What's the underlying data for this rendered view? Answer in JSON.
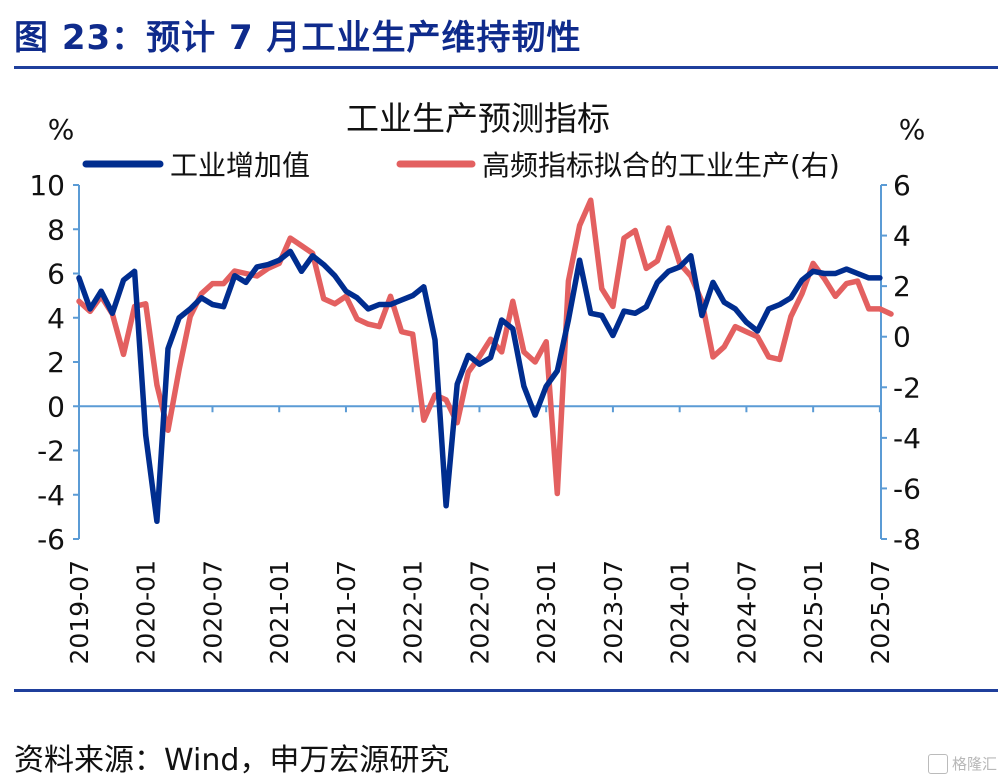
{
  "figure_title": "图 23：预计 7 月工业生产维持韧性",
  "source_note": "资料来源：Wind，申万宏源研究",
  "watermark_text": "格隆汇",
  "colors": {
    "primary": "#002d8f",
    "secondary": "#e36060",
    "axis": "#5b9bd5",
    "title": "#0f2b8c"
  },
  "chart_data": {
    "type": "line",
    "title": "工业生产预测指标",
    "y_unit_left": "%",
    "y_unit_right": "%",
    "ylim_left": [
      -6,
      10
    ],
    "ylim_right": [
      -8,
      6
    ],
    "yticks_left": [
      -6,
      -4,
      -2,
      0,
      2,
      4,
      6,
      8,
      10
    ],
    "yticks_right": [
      -8,
      -6,
      -4,
      -2,
      0,
      2,
      4,
      6
    ],
    "x_tick_labels": [
      "2019-07",
      "2020-01",
      "2020-07",
      "2021-01",
      "2021-07",
      "2022-01",
      "2022-07",
      "2023-01",
      "2023-07",
      "2024-01",
      "2024-07",
      "2025-01",
      "2025-07"
    ],
    "x_start": "2019-07",
    "x_end": "2025-07",
    "legend_position": "top",
    "series": [
      {
        "name": "工业增加值",
        "axis": "left",
        "color": "#002d8f",
        "points": [
          [
            "2019-07",
            5.8
          ],
          [
            "2019-08",
            4.4
          ],
          [
            "2019-09",
            5.2
          ],
          [
            "2019-10",
            4.2
          ],
          [
            "2019-11",
            5.7
          ],
          [
            "2019-12",
            6.1
          ],
          [
            "2020-01",
            -1.3
          ],
          [
            "2020-02",
            -5.2
          ],
          [
            "2020-03",
            2.6
          ],
          [
            "2020-04",
            4.0
          ],
          [
            "2020-05",
            4.4
          ],
          [
            "2020-06",
            4.9
          ],
          [
            "2020-07",
            4.6
          ],
          [
            "2020-08",
            4.5
          ],
          [
            "2020-09",
            5.9
          ],
          [
            "2020-10",
            5.6
          ],
          [
            "2020-11",
            6.3
          ],
          [
            "2020-12",
            6.4
          ],
          [
            "2021-01",
            6.6
          ],
          [
            "2021-02",
            7.0
          ],
          [
            "2021-03",
            6.1
          ],
          [
            "2021-04",
            6.8
          ],
          [
            "2021-05",
            6.4
          ],
          [
            "2021-06",
            5.9
          ],
          [
            "2021-07",
            5.2
          ],
          [
            "2021-08",
            4.9
          ],
          [
            "2021-09",
            4.4
          ],
          [
            "2021-10",
            4.6
          ],
          [
            "2021-11",
            4.6
          ],
          [
            "2021-12",
            4.8
          ],
          [
            "2022-01",
            5.0
          ],
          [
            "2022-02",
            5.4
          ],
          [
            "2022-03",
            3.0
          ],
          [
            "2022-04",
            -4.5
          ],
          [
            "2022-05",
            1.0
          ],
          [
            "2022-06",
            2.3
          ],
          [
            "2022-07",
            1.9
          ],
          [
            "2022-08",
            2.2
          ],
          [
            "2022-09",
            3.9
          ],
          [
            "2022-10",
            3.5
          ],
          [
            "2022-11",
            0.9
          ],
          [
            "2022-12",
            -0.4
          ],
          [
            "2023-01",
            0.9
          ],
          [
            "2023-02",
            1.6
          ],
          [
            "2023-03",
            3.9
          ],
          [
            "2023-04",
            6.6
          ],
          [
            "2023-05",
            4.2
          ],
          [
            "2023-06",
            4.1
          ],
          [
            "2023-07",
            3.2
          ],
          [
            "2023-08",
            4.3
          ],
          [
            "2023-09",
            4.2
          ],
          [
            "2023-10",
            4.5
          ],
          [
            "2023-11",
            5.6
          ],
          [
            "2023-12",
            6.1
          ],
          [
            "2024-01",
            6.3
          ],
          [
            "2024-02",
            6.8
          ],
          [
            "2024-03",
            4.1
          ],
          [
            "2024-04",
            5.6
          ],
          [
            "2024-05",
            4.7
          ],
          [
            "2024-06",
            4.4
          ],
          [
            "2024-07",
            3.8
          ],
          [
            "2024-08",
            3.4
          ],
          [
            "2024-09",
            4.4
          ],
          [
            "2024-10",
            4.6
          ],
          [
            "2024-11",
            4.9
          ],
          [
            "2024-12",
            5.7
          ],
          [
            "2025-01",
            6.1
          ],
          [
            "2025-02",
            6.0
          ],
          [
            "2025-03",
            6.0
          ],
          [
            "2025-04",
            6.2
          ],
          [
            "2025-05",
            6.0
          ],
          [
            "2025-06",
            5.8
          ],
          [
            "2025-07",
            5.8
          ]
        ]
      },
      {
        "name": "高频指标拟合的工业生产(右)",
        "axis": "right",
        "color": "#e36060",
        "points": [
          [
            "2019-07",
            1.4
          ],
          [
            "2019-08",
            1.0
          ],
          [
            "2019-09",
            1.6
          ],
          [
            "2019-10",
            0.9
          ],
          [
            "2019-11",
            -0.7
          ],
          [
            "2019-12",
            1.2
          ],
          [
            "2020-01",
            1.3
          ],
          [
            "2020-02",
            -1.9
          ],
          [
            "2020-03",
            -3.7
          ],
          [
            "2020-04",
            -1.3
          ],
          [
            "2020-05",
            0.8
          ],
          [
            "2020-06",
            1.7
          ],
          [
            "2020-07",
            2.1
          ],
          [
            "2020-08",
            2.1
          ],
          [
            "2020-09",
            2.6
          ],
          [
            "2020-10",
            2.5
          ],
          [
            "2020-11",
            2.4
          ],
          [
            "2020-12",
            2.7
          ],
          [
            "2021-01",
            2.9
          ],
          [
            "2021-02",
            3.9
          ],
          [
            "2021-03",
            3.6
          ],
          [
            "2021-04",
            3.3
          ],
          [
            "2021-05",
            1.5
          ],
          [
            "2021-06",
            1.3
          ],
          [
            "2021-07",
            1.6
          ],
          [
            "2021-08",
            0.7
          ],
          [
            "2021-09",
            0.5
          ],
          [
            "2021-10",
            0.4
          ],
          [
            "2021-11",
            1.6
          ],
          [
            "2021-12",
            0.2
          ],
          [
            "2022-01",
            0.1
          ],
          [
            "2022-02",
            -3.3
          ],
          [
            "2022-03",
            -2.3
          ],
          [
            "2022-04",
            -2.5
          ],
          [
            "2022-05",
            -3.4
          ],
          [
            "2022-06",
            -1.4
          ],
          [
            "2022-07",
            -0.8
          ],
          [
            "2022-08",
            -0.1
          ],
          [
            "2022-09",
            -0.6
          ],
          [
            "2022-10",
            1.4
          ],
          [
            "2022-11",
            -0.6
          ],
          [
            "2022-12",
            -1.0
          ],
          [
            "2023-01",
            -0.2
          ],
          [
            "2023-02",
            -6.2
          ],
          [
            "2023-03",
            2.2
          ],
          [
            "2023-04",
            4.4
          ],
          [
            "2023-05",
            5.4
          ],
          [
            "2023-06",
            1.9
          ],
          [
            "2023-07",
            1.2
          ],
          [
            "2023-08",
            3.9
          ],
          [
            "2023-09",
            4.2
          ],
          [
            "2023-10",
            2.7
          ],
          [
            "2023-11",
            3.0
          ],
          [
            "2023-12",
            4.3
          ],
          [
            "2024-01",
            2.9
          ],
          [
            "2024-02",
            2.4
          ],
          [
            "2024-03",
            1.4
          ],
          [
            "2024-04",
            -0.8
          ],
          [
            "2024-05",
            -0.4
          ],
          [
            "2024-06",
            0.4
          ],
          [
            "2024-07",
            0.2
          ],
          [
            "2024-08",
            0.0
          ],
          [
            "2024-09",
            -0.8
          ],
          [
            "2024-10",
            -0.9
          ],
          [
            "2024-11",
            0.8
          ],
          [
            "2024-12",
            1.7
          ],
          [
            "2025-01",
            2.9
          ],
          [
            "2025-02",
            2.3
          ],
          [
            "2025-03",
            1.6
          ],
          [
            "2025-04",
            2.1
          ],
          [
            "2025-05",
            2.2
          ],
          [
            "2025-06",
            1.1
          ],
          [
            "2025-07",
            1.1
          ],
          [
            "2025-08",
            0.9
          ]
        ]
      }
    ]
  }
}
